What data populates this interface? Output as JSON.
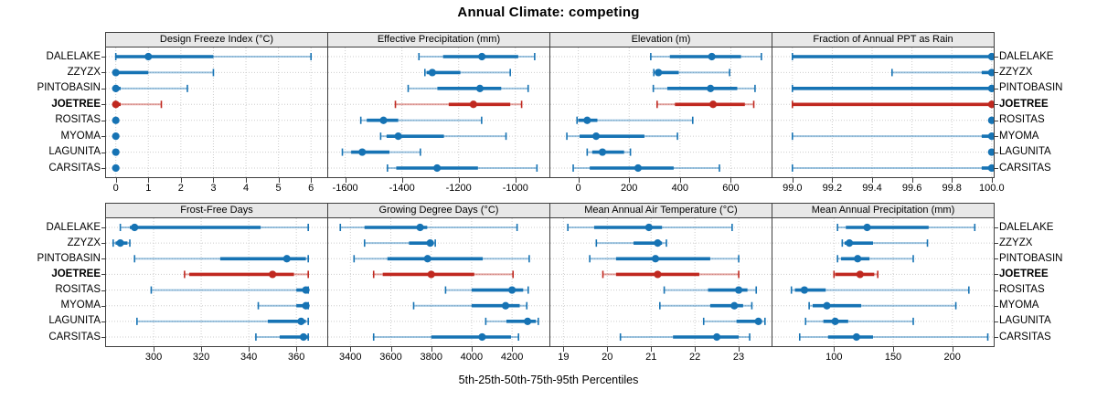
{
  "title": "Annual Climate: competing",
  "caption": "5th-25th-50th-75th-95th Percentiles",
  "colors": {
    "series": "#1673B4",
    "highlight": "#C0281F",
    "grid": "#CDCDCD",
    "strip_bg": "#E8E8E8",
    "border": "#3F3F3F"
  },
  "sites": [
    {
      "label": "DALELAKE",
      "highlight": false
    },
    {
      "label": "ZZYZX",
      "highlight": false
    },
    {
      "label": "PINTOBASIN",
      "highlight": false
    },
    {
      "label": "JOETREE",
      "highlight": true
    },
    {
      "label": "ROSITAS",
      "highlight": false
    },
    {
      "label": "MYOMA",
      "highlight": false
    },
    {
      "label": "LAGUNITA",
      "highlight": false
    },
    {
      "label": "CARSITAS",
      "highlight": false
    }
  ],
  "chart_data": {
    "type": "table",
    "title": "Annual Climate: competing",
    "legend_note": "5th-25th-50th-75th-95th Percentiles",
    "percentiles": [
      5,
      25,
      50,
      75,
      95
    ],
    "panels": [
      {
        "title": "Design Freeze Index (°C)",
        "grid_row": 1,
        "xlim": [
          -0.3,
          6.5
        ],
        "ticks": [
          0,
          1,
          2,
          3,
          4,
          5,
          6
        ],
        "tick_labels": [
          "0",
          "1",
          "2",
          "3",
          "4",
          "5",
          "6"
        ],
        "series": {
          "DALELAKE": [
            0,
            0,
            1,
            3,
            6
          ],
          "ZZYZX": [
            0,
            0,
            0,
            1,
            3
          ],
          "PINTOBASIN": [
            0,
            0,
            0,
            0.15,
            2.2
          ],
          "JOETREE": [
            0,
            0,
            0,
            0.15,
            1.4
          ],
          "ROSITAS": [
            0,
            0,
            0,
            0,
            0
          ],
          "MYOMA": [
            0,
            0,
            0,
            0,
            0
          ],
          "LAGUNITA": [
            0,
            0,
            0,
            0,
            0
          ],
          "CARSITAS": [
            0,
            0,
            0,
            0,
            0
          ]
        }
      },
      {
        "title": "Effective Precipitation (mm)",
        "grid_row": 1,
        "xlim": [
          -1660,
          -880
        ],
        "ticks": [
          -1600,
          -1400,
          -1200,
          -1000
        ],
        "tick_labels": [
          "-1600",
          "-1400",
          "-1200",
          "-1000"
        ],
        "series": {
          "DALELAKE": [
            -1340,
            -1255,
            -1118,
            -990,
            -932
          ],
          "ZZYZX": [
            -1319,
            -1313,
            -1293,
            -1194,
            -1018
          ],
          "PINTOBASIN": [
            -1378,
            -1275,
            -1125,
            -1050,
            -955
          ],
          "JOETREE": [
            -1423,
            -1235,
            -1148,
            -1018,
            -978
          ],
          "ROSITAS": [
            -1545,
            -1524,
            -1465,
            -1413,
            -1119
          ],
          "MYOMA": [
            -1475,
            -1454,
            -1413,
            -1252,
            -1033
          ],
          "LAGUNITA": [
            -1610,
            -1579,
            -1540,
            -1444,
            -1335
          ],
          "CARSITAS": [
            -1451,
            -1420,
            -1276,
            -1132,
            -924
          ]
        }
      },
      {
        "title": "Elevation (m)",
        "grid_row": 1,
        "xlim": [
          -110,
          760
        ],
        "ticks": [
          0,
          200,
          400,
          600
        ],
        "tick_labels": [
          "0",
          "200",
          "400",
          "600"
        ],
        "series": {
          "DALELAKE": [
            285,
            360,
            525,
            640,
            720
          ],
          "ZZYZX": [
            297,
            305,
            315,
            395,
            595
          ],
          "PINTOBASIN": [
            295,
            350,
            520,
            625,
            695
          ],
          "JOETREE": [
            310,
            380,
            530,
            655,
            690
          ],
          "ROSITAS": [
            -5,
            0,
            35,
            75,
            450
          ],
          "MYOMA": [
            -45,
            5,
            70,
            260,
            390
          ],
          "LAGUNITA": [
            35,
            55,
            95,
            180,
            205
          ],
          "CARSITAS": [
            -20,
            45,
            235,
            375,
            555
          ]
        }
      },
      {
        "title": "Fraction of Annual PPT as Rain",
        "grid_row": 1,
        "xlim": [
          98.9,
          100.01
        ],
        "ticks": [
          99.0,
          99.2,
          99.4,
          99.6,
          99.8,
          100.0
        ],
        "tick_labels": [
          "99.0",
          "99.2",
          "99.4",
          "99.6",
          "99.8",
          "100.0"
        ],
        "series": {
          "DALELAKE": [
            99.0,
            99.0,
            100,
            100,
            100
          ],
          "ZZYZX": [
            99.5,
            99.95,
            100,
            100,
            100
          ],
          "PINTOBASIN": [
            99.0,
            99.0,
            100,
            100,
            100
          ],
          "JOETREE": [
            99.0,
            99.0,
            100,
            100,
            100
          ],
          "ROSITAS": [
            100,
            100,
            100,
            100,
            100
          ],
          "MYOMA": [
            99.0,
            99.95,
            100,
            100,
            100
          ],
          "LAGUNITA": [
            100,
            100,
            100,
            100,
            100
          ],
          "CARSITAS": [
            99.0,
            99.95,
            100,
            100,
            100
          ]
        }
      },
      {
        "title": "Frost-Free Days",
        "grid_row": 2,
        "xlim": [
          280,
          373
        ],
        "ticks": [
          300,
          320,
          340,
          360
        ],
        "tick_labels": [
          "300",
          "320",
          "340",
          "360"
        ],
        "series": {
          "DALELAKE": [
            286,
            290,
            292,
            345,
            365
          ],
          "ZZYZX": [
            283,
            284,
            286,
            289,
            290
          ],
          "PINTOBASIN": [
            292,
            328,
            356,
            364,
            365
          ],
          "JOETREE": [
            313,
            315,
            350,
            359,
            365
          ],
          "ROSITAS": [
            299,
            360,
            364,
            365,
            365
          ],
          "MYOMA": [
            344,
            360,
            364,
            365,
            365
          ],
          "LAGUNITA": [
            293,
            348,
            362,
            364,
            365
          ],
          "CARSITAS": [
            343,
            353,
            363,
            365,
            365
          ]
        }
      },
      {
        "title": "Growing Degree Days (°C)",
        "grid_row": 2,
        "xlim": [
          3290,
          4385
        ],
        "ticks": [
          3400,
          3600,
          3800,
          4000,
          4200
        ],
        "tick_labels": [
          "3400",
          "3600",
          "3800",
          "4000",
          "4200"
        ],
        "series": {
          "DALELAKE": [
            3350,
            3470,
            3745,
            3780,
            4225
          ],
          "ZZYZX": [
            3470,
            3690,
            3795,
            3812,
            3820
          ],
          "PINTOBASIN": [
            3418,
            3583,
            3782,
            4055,
            4285
          ],
          "JOETREE": [
            3515,
            3560,
            3800,
            4013,
            4205
          ],
          "ROSITAS": [
            3871,
            4000,
            4200,
            4255,
            4280
          ],
          "MYOMA": [
            3713,
            4000,
            4168,
            4238,
            4273
          ],
          "LAGUNITA": [
            4070,
            4172,
            4277,
            4318,
            4330
          ],
          "CARSITAS": [
            3515,
            3800,
            4052,
            4195,
            4232
          ]
        }
      },
      {
        "title": "Mean Annual Air Temperature (°C)",
        "grid_row": 2,
        "xlim": [
          18.7,
          23.75
        ],
        "ticks": [
          19,
          20,
          21,
          22,
          23
        ],
        "tick_labels": [
          "19",
          "20",
          "21",
          "22",
          "23"
        ],
        "series": {
          "DALELAKE": [
            19.1,
            19.7,
            20.95,
            21.25,
            22.85
          ],
          "ZZYZX": [
            19.75,
            20.6,
            21.15,
            21.25,
            21.35
          ],
          "PINTOBASIN": [
            19.6,
            20.2,
            21.1,
            22.35,
            23.0
          ],
          "JOETREE": [
            19.9,
            20.2,
            21.15,
            22.1,
            23.0
          ],
          "ROSITAS": [
            21.3,
            22.3,
            23.0,
            23.2,
            23.4
          ],
          "MYOMA": [
            21.2,
            22.35,
            22.9,
            23.1,
            23.3
          ],
          "LAGUNITA": [
            22.2,
            22.95,
            23.45,
            23.5,
            23.6
          ],
          "CARSITAS": [
            20.3,
            21.5,
            22.5,
            23.0,
            23.25
          ]
        }
      },
      {
        "title": "Mean Annual Precipitation (mm)",
        "grid_row": 2,
        "xlim": [
          48,
          235
        ],
        "ticks": [
          100,
          150,
          200
        ],
        "tick_labels": [
          "100",
          "150",
          "200"
        ],
        "series": {
          "DALELAKE": [
            103,
            110,
            128,
            180,
            219
          ],
          "ZZYZX": [
            107,
            109,
            113,
            133,
            179
          ],
          "PINTOBASIN": [
            103,
            106,
            120,
            130,
            167
          ],
          "JOETREE": [
            100,
            101,
            122,
            134,
            137
          ],
          "ROSITAS": [
            64,
            67,
            75,
            93,
            214
          ],
          "MYOMA": [
            79,
            82,
            94,
            123,
            203
          ],
          "LAGUNITA": [
            76,
            91,
            101,
            112,
            167
          ],
          "CARSITAS": [
            71,
            95,
            119,
            133,
            230
          ]
        }
      }
    ]
  }
}
